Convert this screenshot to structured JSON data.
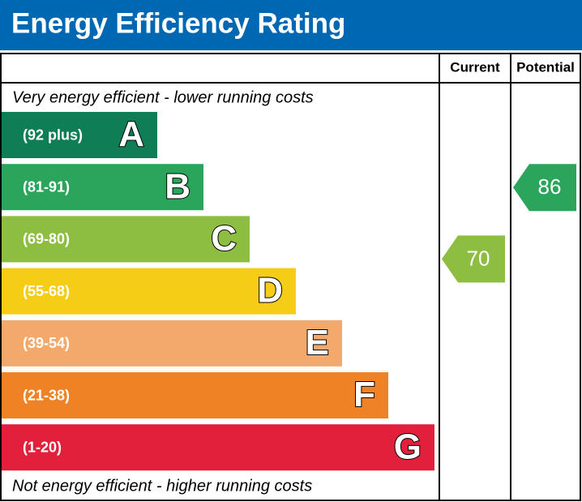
{
  "title": "Energy Efficiency Rating",
  "headers": {
    "current": "Current",
    "potential": "Potential"
  },
  "top_note": "Very energy efficient - lower running costs",
  "bottom_note": "Not energy efficient - higher running costs",
  "bands": [
    {
      "range": "(92 plus)",
      "letter": "A",
      "color": "#0f7e56"
    },
    {
      "range": "(81-91)",
      "letter": "B",
      "color": "#2ba55b"
    },
    {
      "range": "(69-80)",
      "letter": "C",
      "color": "#8dbd41"
    },
    {
      "range": "(55-68)",
      "letter": "D",
      "color": "#f6cd16"
    },
    {
      "range": "(39-54)",
      "letter": "E",
      "color": "#f2a96b"
    },
    {
      "range": "(21-38)",
      "letter": "F",
      "color": "#ee8225"
    },
    {
      "range": "(1-20)",
      "letter": "G",
      "color": "#e2203c"
    }
  ],
  "current": {
    "value": 70,
    "color": "#8dbd41"
  },
  "potential": {
    "value": 86,
    "color": "#2ba55b"
  }
}
